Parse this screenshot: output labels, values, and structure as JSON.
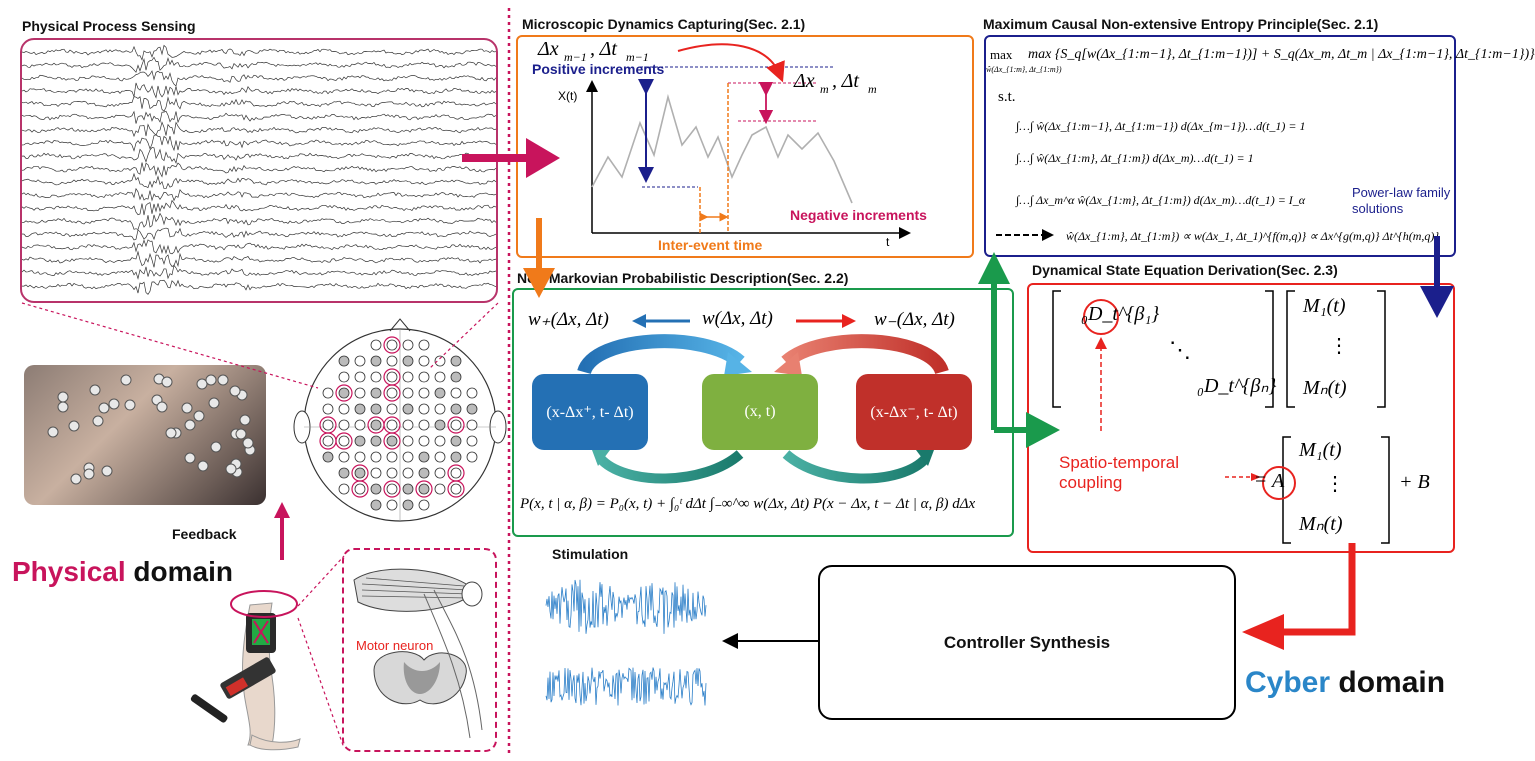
{
  "sections": {
    "physical_sensing": "Physical Process Sensing",
    "micro_dynamics": "Microscopic Dynamics Capturing(Sec. 2.1)",
    "max_entropy": "Maximum Causal Non-extensive Entropy Principle(Sec. 2.1)",
    "non_markov": "Non-Markovian Probabilistic Description(Sec. 2.2)",
    "state_eq": "Dynamical State Equation Derivation(Sec. 2.3)",
    "stimulation": "Stimulation",
    "controller": "Controller Synthesis"
  },
  "labels": {
    "feedback": "Feedback",
    "physical_word": "Physical",
    "domain_word": "domain",
    "cyber_word": "Cyber",
    "motor_neuron": "Motor neuron",
    "positive_increments": "Positive increments",
    "negative_increments": "Negative increments",
    "inter_event_time": "Inter-event time",
    "xt_axis": "X(t)",
    "t_axis": "t",
    "delta_prev": "Δx_{m−1} , Δt_{m−1}",
    "delta_curr": "Δx_m , Δt_m",
    "st": "s.t.",
    "power_law": "Power-law family solutions",
    "spatio_temporal": "Spatio-temporal coupling"
  },
  "math": {
    "max_objective": "max {S_q[w(Δx_{1:m−1}, Δt_{1:m−1})] + S_q(Δx_m, Δt_m | Δx_{1:m−1}, Δt_{1:m−1})}",
    "max_sub": "ŵ(Δx_{1:m}, Δt_{1:m})",
    "c1": "∫…∫ ŵ(Δx_{1:m−1}, Δt_{1:m−1}) d(Δx_{m−1})…d(t_1) = 1",
    "c2": "∫…∫ ŵ(Δx_{1:m}, Δt_{1:m}) d(Δx_m)…d(t_1) = 1",
    "c3": "∫…∫ Δx_m^α ŵ(Δx_{1:m}, Δt_{1:m}) d(Δx_m)…d(t_1) = I_α",
    "solution": "ŵ(Δx_{1:m}, Δt_{1:m}) ∝ w(Δx_1, Δt_1)^{f(m,q)} ∝ Δx^{g(m,q)} Δt^{h(m,q)}",
    "w_plus": "w₊(Δx, Δt)",
    "w_center": "w(Δx, Δt)",
    "w_minus": "w₋(Δx, Δt)",
    "node_left": "(x-Δx⁺, t- Δt)",
    "node_center": "(x, t)",
    "node_right": "(x-Δx⁻, t- Δt)",
    "master_eq": "P(x, t | α, β) = P₀(x, t) + ∫₀ᵗ dΔt ∫₋∞^∞ w(Δx, Δt) P(x − Δx, t − Δt | α, β) dΔx",
    "D1": "₀D_t^{β₁}",
    "Dn": "₀D_t^{βₙ}",
    "M1": "M₁(t)",
    "Mn": "Mₙ(t)",
    "A": "A",
    "plusB": "+ B",
    "vdots": "⋮",
    "ddots": "⋱"
  },
  "colors": {
    "crimson": "#c8145c",
    "orange": "#f07a1a",
    "navy": "#1b1f8c",
    "green": "#1a9a4c",
    "red": "#e8231f",
    "blue_node": "#2470b4",
    "green_node": "#7fb040",
    "red_node": "#c0302a",
    "cyber_blue": "#2a86c8",
    "signal_blue": "#2a7ec8"
  }
}
